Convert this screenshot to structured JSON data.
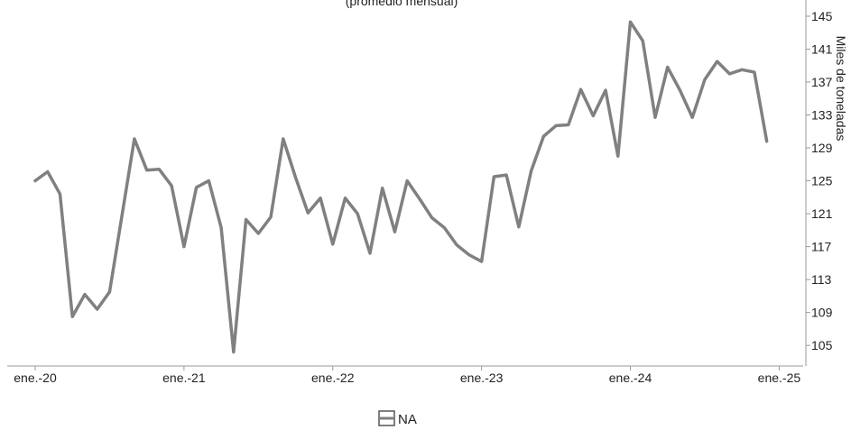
{
  "chart_data": {
    "type": "line",
    "title": "",
    "subtitle": "(promedio mensual)",
    "xlabel": "",
    "ylabel": "Miles de toneladas",
    "x_ticks": [
      "ene.-20",
      "ene.-21",
      "ene.-22",
      "ene.-23",
      "ene.-24",
      "ene.-25"
    ],
    "y_ticks": [
      105,
      109,
      113,
      117,
      121,
      125,
      129,
      133,
      137,
      141,
      145
    ],
    "ylim": [
      102.5,
      146.2
    ],
    "grid": false,
    "legend_position": "bottom-center",
    "series": [
      {
        "name": "NA",
        "color": "#808080",
        "x": [
          "2020-01",
          "2020-02",
          "2020-03",
          "2020-04",
          "2020-05",
          "2020-06",
          "2020-07",
          "2020-08",
          "2020-09",
          "2020-10",
          "2020-11",
          "2020-12",
          "2021-01",
          "2021-02",
          "2021-03",
          "2021-04",
          "2021-05",
          "2021-06",
          "2021-07",
          "2021-08",
          "2021-09",
          "2021-10",
          "2021-11",
          "2021-12",
          "2022-01",
          "2022-02",
          "2022-03",
          "2022-04",
          "2022-05",
          "2022-06",
          "2022-07",
          "2022-08",
          "2022-09",
          "2022-10",
          "2022-11",
          "2022-12",
          "2023-01",
          "2023-02",
          "2023-03",
          "2023-04",
          "2023-05",
          "2023-06",
          "2023-07",
          "2023-08",
          "2023-09",
          "2023-10",
          "2023-11",
          "2023-12",
          "2024-01",
          "2024-02",
          "2024-03",
          "2024-04",
          "2024-05",
          "2024-06",
          "2024-07",
          "2024-08",
          "2024-09",
          "2024-10",
          "2024-11",
          "2024-12"
        ],
        "values": [
          125.0,
          126.1,
          123.4,
          108.5,
          111.2,
          109.4,
          111.5,
          120.8,
          130.1,
          126.3,
          126.4,
          124.4,
          117.0,
          124.2,
          125.0,
          119.3,
          104.2,
          120.3,
          118.6,
          120.6,
          130.1,
          125.4,
          121.1,
          122.9,
          117.3,
          122.9,
          121.0,
          116.2,
          124.1,
          118.8,
          125.0,
          122.8,
          120.5,
          119.3,
          117.2,
          116.0,
          115.2,
          125.5,
          125.7,
          119.4,
          126.2,
          130.4,
          131.7,
          131.8,
          136.1,
          132.9,
          136.0,
          128.0,
          144.3,
          142.0,
          132.7,
          138.8,
          136.0,
          132.7,
          137.3,
          139.5,
          138.0,
          138.5,
          138.2,
          129.8
        ]
      }
    ]
  }
}
